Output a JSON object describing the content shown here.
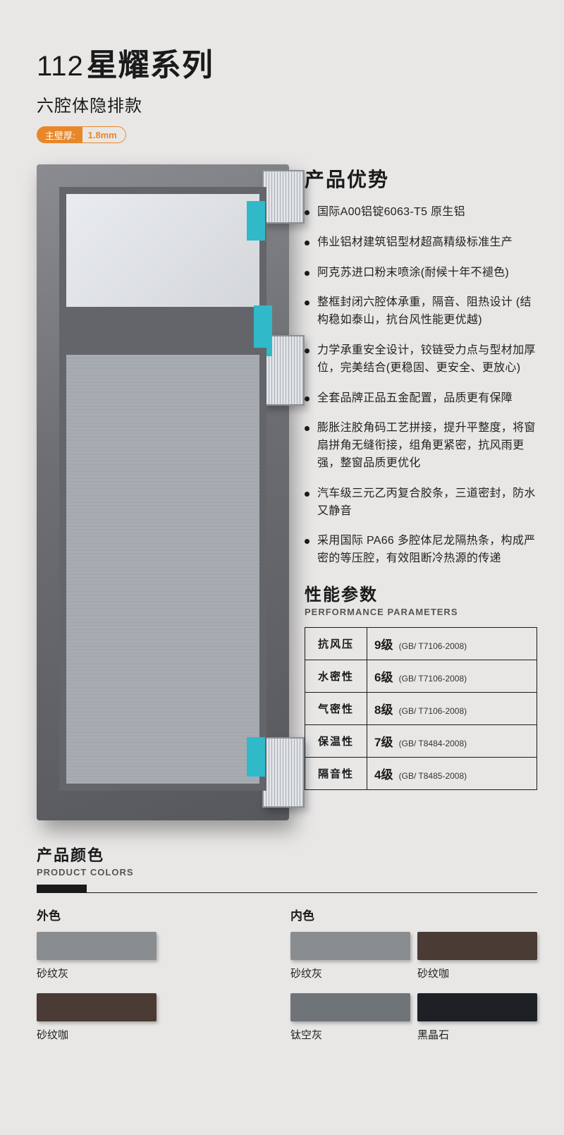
{
  "header": {
    "series_number": "112",
    "series_name": "星耀系列",
    "subtitle": "六腔体隐排款",
    "badge_label": "主壁厚:",
    "badge_value": "1.8mm",
    "badge_bg": "#e8872a"
  },
  "render": {
    "frame_color": "#6d6f73",
    "accent_color": "#2fb9c9",
    "shadow_color": "rgba(0,0,0,.35)"
  },
  "advantages": {
    "title": "产品优势",
    "items": [
      "国际A00铝锭6063-T5 原生铝",
      "伟业铝材建筑铝型材超高精级标准生产",
      "阿克苏进口粉末喷涂(耐候十年不褪色)",
      "整框封闭六腔体承重，隔音、阻热设计 (结构稳如泰山，抗台风性能更优越)",
      "力学承重安全设计，铰链受力点与型材加厚位，完美结合(更稳固、更安全、更放心)",
      "全套品牌正品五金配置，品质更有保障",
      "膨胀注胶角码工艺拼接，提升平整度，将窗扇拼角无缝衔接，组角更紧密，抗风雨更强，整窗品质更优化",
      "汽车级三元乙丙复合胶条，三道密封，防水又静音",
      "采用国际 PA66 多腔体尼龙隔热条，构成严密的等压腔，有效阻断冷热源的传递"
    ]
  },
  "performance": {
    "title_cn": "性能参数",
    "title_en": "PERFORMANCE PARAMETERS",
    "rows": [
      {
        "key": "抗风压",
        "level": "9级",
        "standard": "(GB/ T7106-2008)"
      },
      {
        "key": "水密性",
        "level": "6级",
        "standard": "(GB/ T7106-2008)"
      },
      {
        "key": "气密性",
        "level": "8级",
        "standard": "(GB/ T7106-2008)"
      },
      {
        "key": "保温性",
        "level": "7级",
        "standard": "(GB/ T8484-2008)"
      },
      {
        "key": "隔音性",
        "level": "4级",
        "standard": "(GB/ T8485-2008)"
      }
    ]
  },
  "product_colors": {
    "title_cn": "产品颜色",
    "title_en": "PRODUCT COLORS",
    "outer_label": "外色",
    "inner_label": "内色",
    "outer": [
      {
        "name": "砂纹灰",
        "hex": "#8a8d90"
      },
      {
        "name": "砂纹咖",
        "hex": "#4a3b34"
      }
    ],
    "inner": [
      {
        "name": "砂纹灰",
        "hex": "#8a8d90"
      },
      {
        "name": "砂纹咖",
        "hex": "#4a3b34"
      },
      {
        "name": "钛空灰",
        "hex": "#6f7479"
      },
      {
        "name": "黑晶石",
        "hex": "#1d2126"
      }
    ]
  },
  "page_bg": "#e8e7e6"
}
